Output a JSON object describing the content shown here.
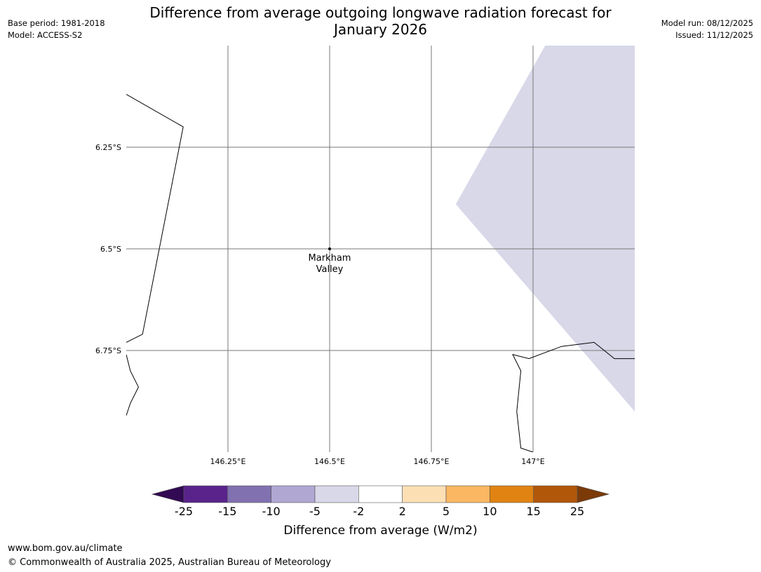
{
  "title_line1": "Difference from average outgoing longwave radiation forecast for",
  "title_line2": "January 2026",
  "meta": {
    "base_period": "Base period: 1981-2018",
    "model": "Model: ACCESS-S2",
    "model_run": "Model run: 08/12/2025",
    "issued": "Issued: 11/12/2025"
  },
  "map": {
    "extent": {
      "lon_min": 146.0,
      "lon_max": 147.25,
      "lat_max": -6.0,
      "lat_min": -7.0
    },
    "longitudes": [
      146.25,
      146.5,
      146.75,
      147.0
    ],
    "latitudes": [
      -6.25,
      -6.5,
      -6.75
    ],
    "lon_labels": [
      "146.25°E",
      "146.5°E",
      "146.75°E",
      "147°E"
    ],
    "lat_labels": [
      "6.25°S",
      "6.5°S",
      "6.75°S"
    ],
    "place": {
      "name_line1": "Markham",
      "name_line2": "Valley",
      "lon": 146.5,
      "lat": -6.5
    },
    "anomaly_region": {
      "category": "-5 to -2",
      "color": "#d8d8e9",
      "polygon": [
        [
          147.03,
          -6.0
        ],
        [
          147.25,
          -6.0
        ],
        [
          147.25,
          -6.9
        ],
        [
          146.81,
          -6.39
        ]
      ]
    },
    "coastlines": [
      [
        [
          146.0,
          -6.12
        ],
        [
          146.14,
          -6.2
        ],
        [
          146.04,
          -6.71
        ],
        [
          146.0,
          -6.73
        ]
      ],
      [
        [
          146.0,
          -6.76
        ],
        [
          146.01,
          -6.8
        ],
        [
          146.03,
          -6.84
        ],
        [
          146.01,
          -6.88
        ],
        [
          146.0,
          -6.91
        ]
      ],
      [
        [
          147.0,
          -7.0
        ],
        [
          146.97,
          -6.99
        ],
        [
          146.96,
          -6.9
        ],
        [
          146.97,
          -6.8
        ],
        [
          146.95,
          -6.76
        ],
        [
          146.99,
          -6.77
        ],
        [
          147.07,
          -6.74
        ],
        [
          147.15,
          -6.73
        ],
        [
          147.2,
          -6.77
        ],
        [
          147.25,
          -6.77
        ]
      ]
    ]
  },
  "colorbar": {
    "title": "Difference from average (W/m2)",
    "tick_labels": [
      "-25",
      "-15",
      "-10",
      "-5",
      "-2",
      "2",
      "5",
      "10",
      "15",
      "25"
    ],
    "colors": [
      "#59238b",
      "#8171b0",
      "#b1a7d3",
      "#d8d8e9",
      "#ffffff",
      "#fddfb4",
      "#fbb761",
      "#e08312",
      "#b1570a"
    ],
    "under_color": "#320a53",
    "over_color": "#7b3a08"
  },
  "footer": {
    "url": "www.bom.gov.au/climate",
    "copyright": "© Commonwealth of Australia 2025, Australian Bureau of Meteorology"
  }
}
